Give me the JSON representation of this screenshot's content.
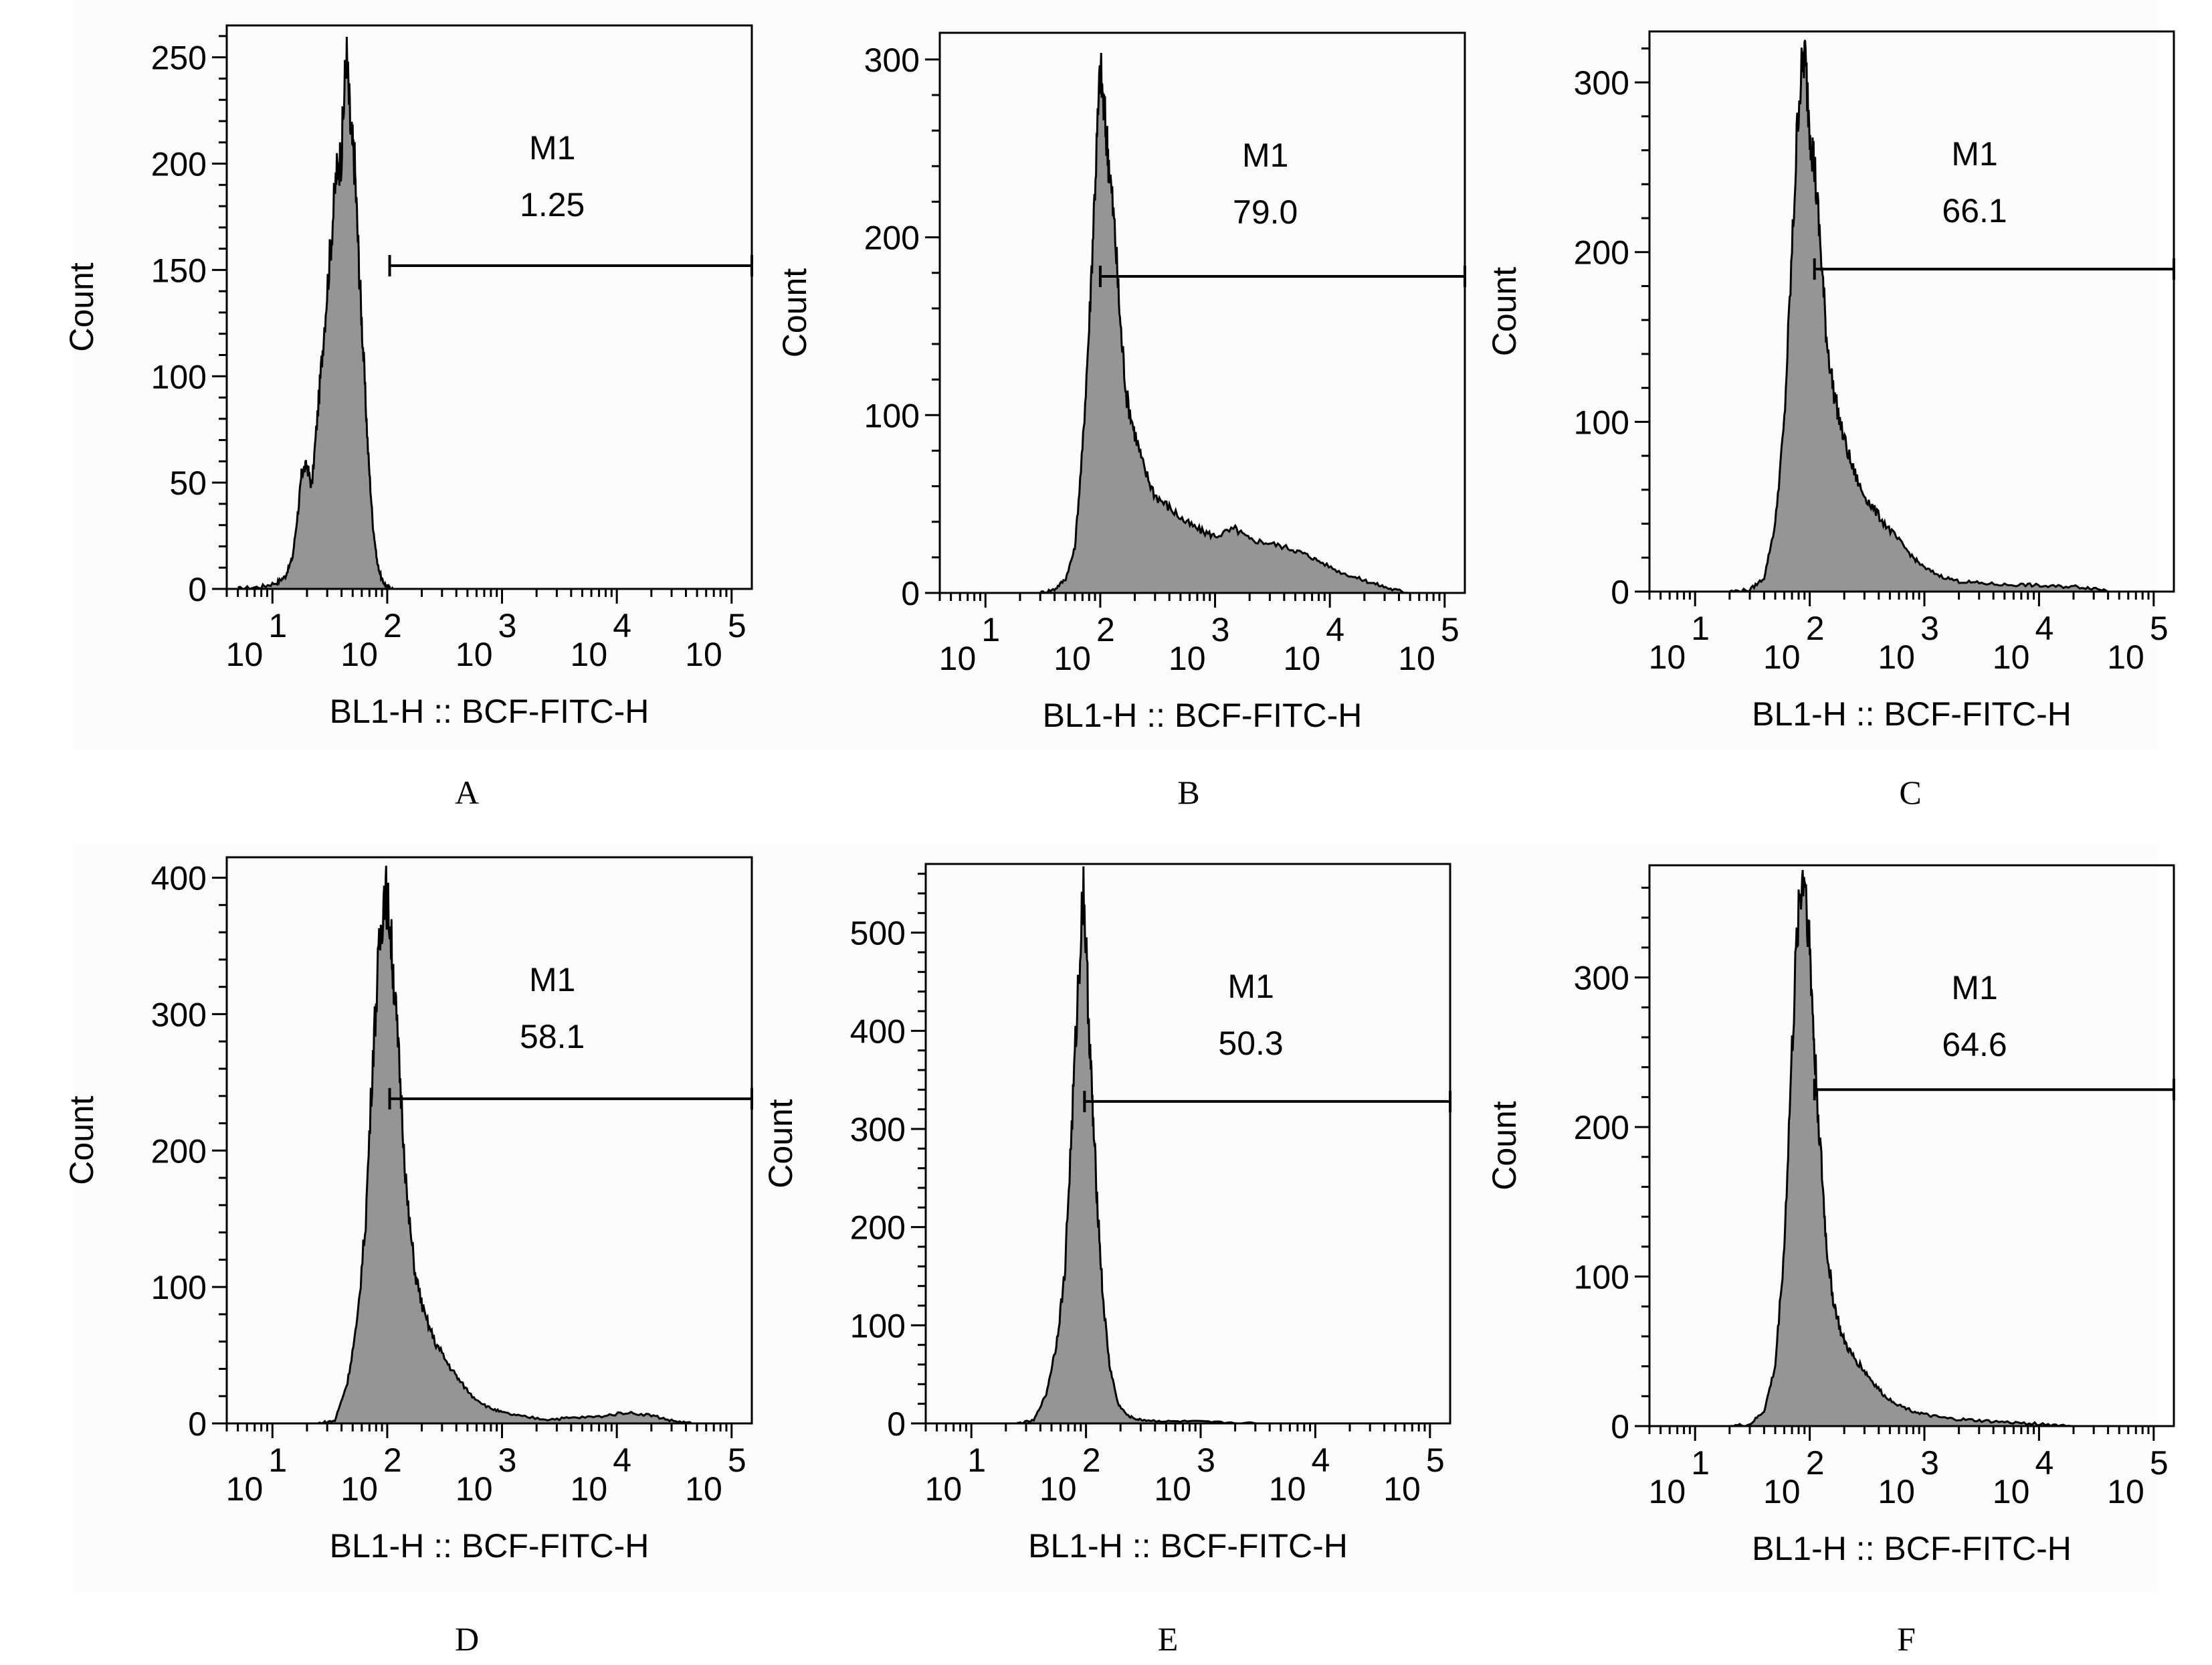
{
  "colors": {
    "fill": "#959595",
    "line": "#000000",
    "background": "#fcfcfc"
  },
  "chart_data": [
    {
      "type": "area",
      "panel": "A",
      "xlabel": "BL1-H :: BCF-FITC-H",
      "ylabel": "Count",
      "xscale": "log",
      "xlim": [
        4,
        150000
      ],
      "ylim": [
        0,
        265
      ],
      "yticks": [
        0,
        50,
        100,
        150,
        200,
        250
      ],
      "ytick_labels": [
        "0",
        "50",
        "100",
        "150",
        "200",
        "250"
      ],
      "xtick_labels": [
        {
          "base": "10",
          "exp": "1"
        },
        {
          "base": "10",
          "exp": "2"
        },
        {
          "base": "10",
          "exp": "3"
        },
        {
          "base": "10",
          "exp": "4"
        },
        {
          "base": "10",
          "exp": "5"
        }
      ],
      "gate": {
        "name": "M1",
        "value": "1.25",
        "from": 105,
        "to": 150000,
        "level": 152
      },
      "x": [
        5,
        8,
        11,
        13,
        15,
        17,
        18,
        20,
        22,
        25,
        28,
        32,
        36,
        40,
        44,
        48,
        52,
        57,
        62,
        68,
        75,
        82,
        90,
        100,
        112
      ],
      "y": [
        0,
        1,
        3,
        6,
        15,
        40,
        55,
        58,
        48,
        85,
        120,
        160,
        195,
        205,
        253,
        215,
        200,
        150,
        110,
        65,
        30,
        12,
        4,
        1,
        0
      ]
    },
    {
      "type": "area",
      "panel": "B",
      "xlabel": "BL1-H :: BCF-FITC-H",
      "ylabel": "Count",
      "xscale": "log",
      "xlim": [
        4,
        150000
      ],
      "ylim": [
        0,
        315
      ],
      "yticks": [
        0,
        100,
        200,
        300
      ],
      "ytick_labels": [
        "0",
        "100",
        "200",
        "300"
      ],
      "xtick_labels": [
        {
          "base": "10",
          "exp": "1"
        },
        {
          "base": "10",
          "exp": "2"
        },
        {
          "base": "10",
          "exp": "3"
        },
        {
          "base": "10",
          "exp": "4"
        },
        {
          "base": "10",
          "exp": "5"
        }
      ],
      "gate": {
        "name": "M1",
        "value": "79.0",
        "from": 100,
        "to": 150000,
        "level": 178
      },
      "x": [
        30,
        40,
        50,
        60,
        70,
        80,
        90,
        100,
        110,
        120,
        135,
        150,
        170,
        200,
        240,
        300,
        400,
        550,
        750,
        1000,
        1500,
        2000,
        3000,
        4500,
        6000,
        8000,
        12000,
        18000,
        25000,
        35000,
        50000
      ],
      "y": [
        0,
        2,
        8,
        25,
        80,
        150,
        230,
        295,
        265,
        240,
        200,
        150,
        110,
        90,
        70,
        55,
        48,
        40,
        35,
        32,
        36,
        30,
        28,
        25,
        22,
        18,
        12,
        8,
        5,
        2,
        0
      ]
    },
    {
      "type": "area",
      "panel": "C",
      "xlabel": "BL1-H :: BCF-FITC-H",
      "ylabel": "Count",
      "xscale": "log",
      "xlim": [
        4,
        150000
      ],
      "ylim": [
        0,
        330
      ],
      "yticks": [
        0,
        100,
        200,
        300
      ],
      "ytick_labels": [
        "0",
        "100",
        "200",
        "300"
      ],
      "xtick_labels": [
        {
          "base": "10",
          "exp": "1"
        },
        {
          "base": "10",
          "exp": "2"
        },
        {
          "base": "10",
          "exp": "3"
        },
        {
          "base": "10",
          "exp": "4"
        },
        {
          "base": "10",
          "exp": "5"
        }
      ],
      "gate": {
        "name": "M1",
        "value": "66.1",
        "from": 110,
        "to": 150000,
        "level": 190
      },
      "x": [
        20,
        30,
        40,
        50,
        60,
        70,
        80,
        90,
        100,
        110,
        125,
        140,
        160,
        190,
        230,
        280,
        350,
        450,
        600,
        800,
        1000,
        1400,
        2000,
        3000,
        5000,
        8000,
        12000,
        20000,
        30000,
        45000
      ],
      "y": [
        0,
        1,
        8,
        40,
        100,
        200,
        290,
        318,
        275,
        250,
        200,
        150,
        120,
        95,
        75,
        60,
        50,
        40,
        30,
        20,
        14,
        9,
        6,
        5,
        4,
        4,
        3,
        3,
        2,
        0
      ]
    },
    {
      "type": "area",
      "panel": "D",
      "xlabel": "BL1-H :: BCF-FITC-H",
      "ylabel": "Count",
      "xscale": "log",
      "xlim": [
        4,
        150000
      ],
      "ylim": [
        0,
        415
      ],
      "yticks": [
        0,
        100,
        200,
        300,
        400
      ],
      "ytick_labels": [
        "0",
        "100",
        "200",
        "300",
        "400"
      ],
      "xtick_labels": [
        {
          "base": "10",
          "exp": "1"
        },
        {
          "base": "10",
          "exp": "2"
        },
        {
          "base": "10",
          "exp": "3"
        },
        {
          "base": "10",
          "exp": "4"
        },
        {
          "base": "10",
          "exp": "5"
        }
      ],
      "gate": {
        "name": "M1",
        "value": "58.1",
        "from": 105,
        "to": 150000,
        "level": 238
      },
      "x": [
        25,
        35,
        45,
        55,
        65,
        75,
        85,
        95,
        105,
        115,
        130,
        150,
        175,
        210,
        260,
        330,
        420,
        550,
        750,
        1000,
        1500,
        2500,
        4000,
        7000,
        12000,
        20000,
        30000,
        45000
      ],
      "y": [
        0,
        2,
        30,
        75,
        150,
        270,
        345,
        395,
        370,
        320,
        250,
        160,
        110,
        80,
        60,
        45,
        32,
        20,
        12,
        8,
        5,
        3,
        4,
        5,
        8,
        6,
        2,
        0
      ]
    },
    {
      "type": "area",
      "panel": "E",
      "xlabel": "BL1-H :: BCF-FITC-H",
      "ylabel": "Count",
      "xscale": "log",
      "xlim": [
        4,
        150000
      ],
      "ylim": [
        0,
        570
      ],
      "yticks": [
        0,
        100,
        200,
        300,
        400,
        500
      ],
      "ytick_labels": [
        "0",
        "100",
        "200",
        "300",
        "400",
        "500"
      ],
      "xtick_labels": [
        {
          "base": "10",
          "exp": "1"
        },
        {
          "base": "10",
          "exp": "2"
        },
        {
          "base": "10",
          "exp": "3"
        },
        {
          "base": "10",
          "exp": "4"
        },
        {
          "base": "10",
          "exp": "5"
        }
      ],
      "gate": {
        "name": "M1",
        "value": "50.3",
        "from": 97,
        "to": 150000,
        "level": 328
      },
      "x": [
        25,
        35,
        45,
        55,
        65,
        75,
        85,
        95,
        105,
        115,
        125,
        140,
        160,
        190,
        230,
        280,
        350,
        500,
        800,
        1500,
        3000
      ],
      "y": [
        0,
        3,
        30,
        80,
        150,
        300,
        440,
        550,
        420,
        310,
        230,
        130,
        60,
        20,
        8,
        4,
        3,
        2,
        2,
        1,
        0
      ]
    },
    {
      "type": "area",
      "panel": "F",
      "xlabel": "BL1-H :: BCF-FITC-H",
      "ylabel": "Count",
      "xscale": "log",
      "xlim": [
        4,
        150000
      ],
      "ylim": [
        0,
        375
      ],
      "yticks": [
        0,
        100,
        200,
        300
      ],
      "ytick_labels": [
        "0",
        "100",
        "200",
        "300"
      ],
      "xtick_labels": [
        {
          "base": "10",
          "exp": "1"
        },
        {
          "base": "10",
          "exp": "2"
        },
        {
          "base": "10",
          "exp": "3"
        },
        {
          "base": "10",
          "exp": "4"
        },
        {
          "base": "10",
          "exp": "5"
        }
      ],
      "gate": {
        "name": "M1",
        "value": "64.6",
        "from": 110,
        "to": 150000,
        "level": 225
      },
      "x": [
        20,
        30,
        40,
        50,
        60,
        70,
        80,
        90,
        100,
        110,
        125,
        140,
        160,
        190,
        230,
        280,
        350,
        450,
        600,
        800,
        1100,
        1600,
        2500,
        4000,
        7000,
        12000,
        20000
      ],
      "y": [
        0,
        1,
        10,
        40,
        120,
        250,
        350,
        372,
        320,
        250,
        180,
        120,
        85,
        60,
        48,
        40,
        30,
        20,
        14,
        10,
        7,
        5,
        4,
        3,
        2,
        1,
        0
      ]
    }
  ],
  "panel_labels": [
    "A",
    "B",
    "C",
    "D",
    "E",
    "F"
  ]
}
